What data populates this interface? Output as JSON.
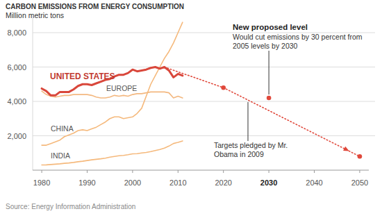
{
  "chart_data": {
    "type": "line",
    "title": "CARBON EMISSIONS FROM ENERGY CONSUMPTION",
    "subtitle": "Million metric tons",
    "source": "Source: Energy Information Administration",
    "annotations": [
      "Would cut emissions by 30 percent from 2005 levels by 2030"
    ],
    "x": [
      1980,
      1981,
      1982,
      1983,
      1984,
      1985,
      1986,
      1987,
      1988,
      1989,
      1990,
      1991,
      1992,
      1993,
      1994,
      1995,
      1996,
      1997,
      1998,
      1999,
      2000,
      2001,
      2002,
      2003,
      2004,
      2005,
      2006,
      2007,
      2008,
      2009,
      2010,
      2011
    ],
    "series": [
      {
        "name": "UNITED STATES",
        "color": "#d9473b",
        "line_style": "solid",
        "values": [
          4750,
          4600,
          4350,
          4350,
          4550,
          4550,
          4550,
          4700,
          4900,
          5000,
          5000,
          4950,
          5050,
          5150,
          5250,
          5300,
          5450,
          5550,
          5550,
          5650,
          5850,
          5750,
          5800,
          5850,
          5950,
          6000,
          5900,
          6000,
          5800,
          5400,
          5600,
          5500
        ]
      },
      {
        "name": "EUROPE",
        "color": "#f3b880",
        "line_style": "solid",
        "values": [
          4600,
          4400,
          4300,
          4250,
          4300,
          4350,
          4350,
          4400,
          4400,
          4400,
          4400,
          4350,
          4250,
          4200,
          4200,
          4250,
          4350,
          4300,
          4350,
          4300,
          4400,
          4450,
          4450,
          4500,
          4550,
          4550,
          4550,
          4550,
          4500,
          4200,
          4300,
          4200
        ]
      },
      {
        "name": "CHINA",
        "color": "#f5b97c",
        "line_style": "solid",
        "values": [
          1450,
          1450,
          1550,
          1650,
          1750,
          1950,
          2050,
          2150,
          2300,
          2350,
          2300,
          2400,
          2500,
          2650,
          2800,
          3000,
          3100,
          3100,
          3000,
          3050,
          3100,
          3300,
          3600,
          4300,
          5000,
          5500,
          6000,
          6500,
          6900,
          7400,
          8000,
          8600
        ]
      },
      {
        "name": "INDIA",
        "color": "#f5b97c",
        "line_style": "solid",
        "values": [
          300,
          310,
          330,
          350,
          370,
          400,
          420,
          450,
          490,
          520,
          560,
          600,
          630,
          660,
          700,
          760,
          800,
          840,
          860,
          900,
          950,
          960,
          1000,
          1030,
          1080,
          1140,
          1200,
          1280,
          1400,
          1550,
          1620,
          1700
        ]
      },
      {
        "name": "Targets pledged by Mr. Obama in 2009",
        "color": "#e0483b",
        "line_style": "dotted",
        "marker": "circle",
        "x": [
          2007,
          2020,
          2050
        ],
        "values": [
          6000,
          4800,
          800
        ]
      },
      {
        "name": "New proposed level",
        "type": "scatter",
        "color": "#e0483b",
        "marker": "circle",
        "x": [
          2030
        ],
        "values": [
          4200
        ]
      }
    ],
    "xlim": [
      1978,
      2052
    ],
    "xticks": [
      1980,
      1990,
      2000,
      2010,
      2020,
      2030,
      2040,
      2050
    ],
    "ylim": [
      0,
      9000
    ],
    "yticks": [
      {
        "value": 2000,
        "label": "2,000"
      },
      {
        "value": 4000,
        "label": "4,000"
      },
      {
        "value": 6000,
        "label": "6,000"
      },
      {
        "value": 8000,
        "label": "8,000"
      }
    ],
    "grid": true
  }
}
